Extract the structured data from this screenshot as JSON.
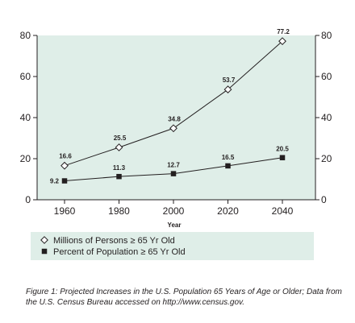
{
  "chart_data": {
    "type": "line",
    "categories": [
      "1960",
      "1980",
      "2000",
      "2020",
      "2040"
    ],
    "x": [
      1960,
      1980,
      2000,
      2020,
      2040
    ],
    "series": [
      {
        "name": "Millions of Persons ≥ 65 Yr Old",
        "values": [
          16.6,
          25.5,
          34.8,
          53.7,
          77.2
        ],
        "labels": [
          "16.6",
          "25.5",
          "34.8",
          "53.7",
          "77.2"
        ],
        "marker": "open-diamond",
        "color": "#231f20"
      },
      {
        "name": "Percent of Population ≥ 65 Yr Old",
        "values": [
          9.2,
          11.3,
          12.7,
          16.5,
          20.5
        ],
        "labels": [
          "9.2",
          "11.3",
          "12.7",
          "16.5",
          "20.5"
        ],
        "marker": "filled-square",
        "color": "#231f20"
      }
    ],
    "xlabel": "Year",
    "ylabel": "",
    "ylim": [
      0,
      80
    ],
    "yticks": [
      0,
      20,
      40,
      60,
      80
    ],
    "ytick_labels": [
      "0",
      "20",
      "40",
      "60",
      "80"
    ],
    "secondary_yticks": [
      0,
      20,
      40,
      60,
      80
    ],
    "secondary_ytick_labels": [
      "0",
      "20",
      "40",
      "60",
      "80"
    ],
    "grid": false,
    "legend_position": "bottom-left",
    "plot_background": "#dfeee8",
    "legend_background": "#dfeee8"
  },
  "caption": "Figure 1: Projected Increases in the U.S. Population 65 Years of Age or Older; Data from the U.S. Census Bureau accessed on http://www.census.gov."
}
